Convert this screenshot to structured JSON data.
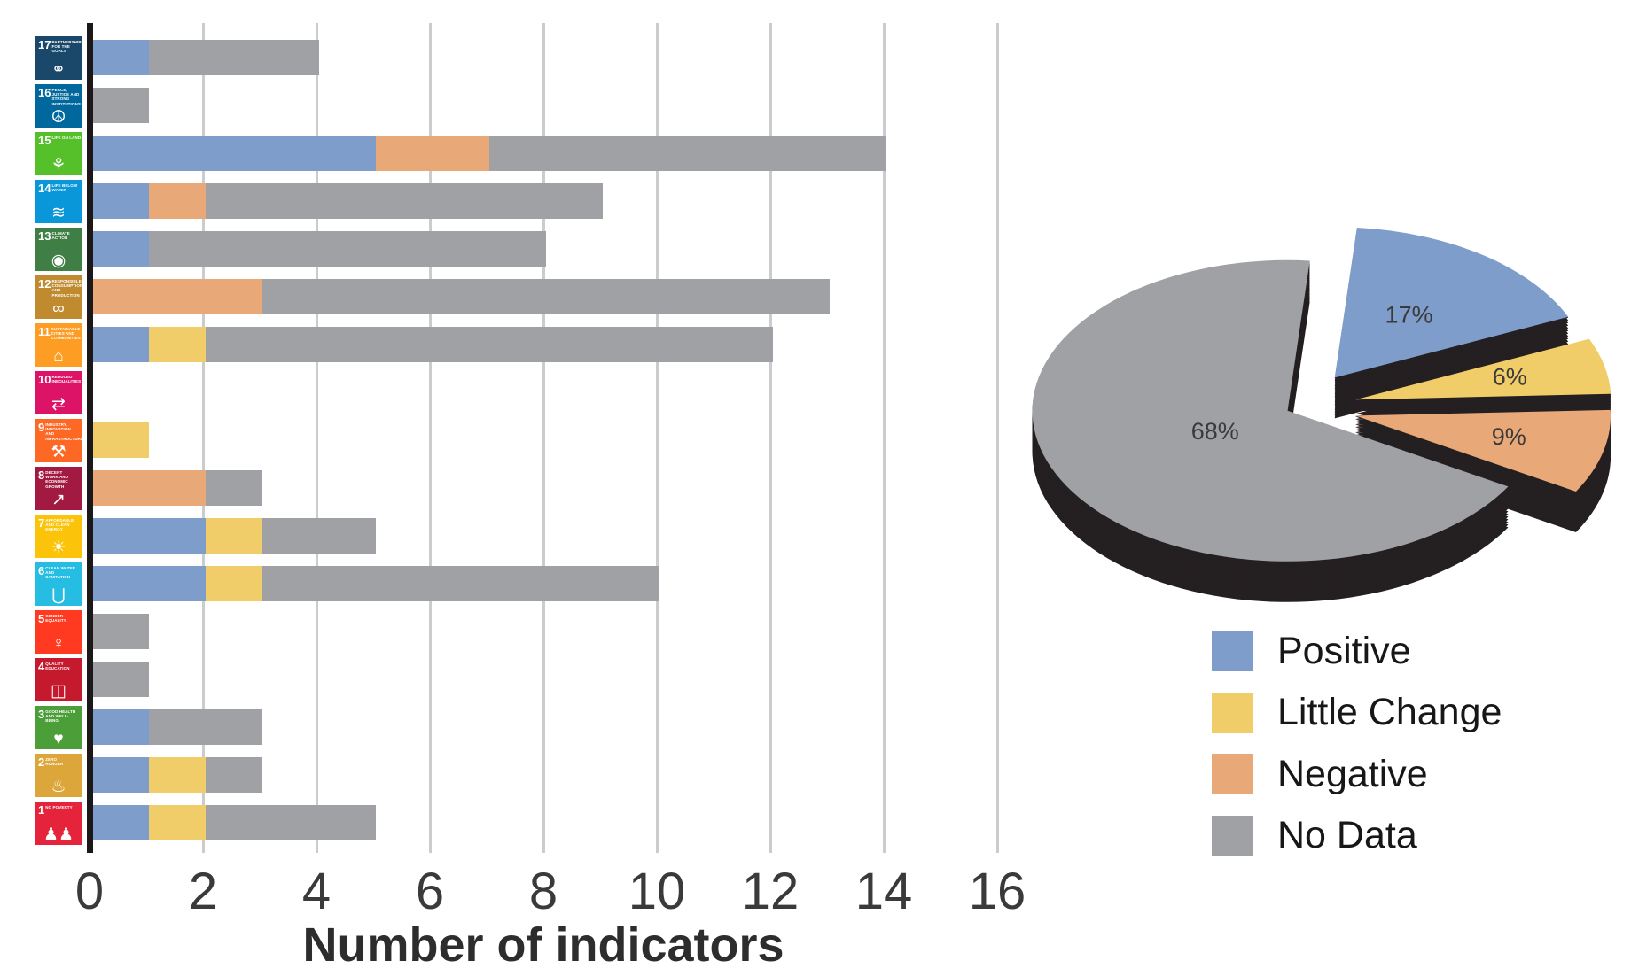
{
  "figure": {
    "background": "#ffffff",
    "xlabel": "Number of indicators"
  },
  "series": [
    {
      "key": "positive",
      "label": "Positive",
      "color": "#7F9DCB"
    },
    {
      "key": "little_change",
      "label": "Little Change",
      "color": "#F0CD68"
    },
    {
      "key": "negative",
      "label": "Negative",
      "color": "#E9A878"
    },
    {
      "key": "no_data",
      "label": "No Data",
      "color": "#A0A1A5"
    }
  ],
  "chart_data": [
    {
      "type": "bar",
      "orientation": "horizontal",
      "stacked": true,
      "xlabel": "Number of indicators",
      "xlim": [
        0,
        16
      ],
      "xticks": [
        0,
        2,
        4,
        6,
        8,
        10,
        12,
        14,
        16
      ],
      "grid": "vertical",
      "series_order": [
        "positive",
        "little_change",
        "negative",
        "no_data"
      ],
      "rows": [
        {
          "sdg": 17,
          "title": "PARTNERSHIPS FOR THE GOALS",
          "tile_color": "#19486A",
          "pictogram": "interlocked-rings-icon",
          "glyph": "⚭",
          "values": {
            "positive": 1,
            "little_change": 0,
            "negative": 0,
            "no_data": 3
          }
        },
        {
          "sdg": 16,
          "title": "PEACE, JUSTICE AND STRONG INSTITUTIONS",
          "tile_color": "#00689D",
          "pictogram": "dove-icon",
          "glyph": "☮",
          "values": {
            "positive": 0,
            "little_change": 0,
            "negative": 0,
            "no_data": 1
          }
        },
        {
          "sdg": 15,
          "title": "LIFE ON LAND",
          "tile_color": "#56C02B",
          "pictogram": "tree-icon",
          "glyph": "⚘",
          "values": {
            "positive": 5,
            "little_change": 0,
            "negative": 2,
            "no_data": 7
          }
        },
        {
          "sdg": 14,
          "title": "LIFE BELOW WATER",
          "tile_color": "#0A97D9",
          "pictogram": "fish-waves-icon",
          "glyph": "≋",
          "values": {
            "positive": 1,
            "little_change": 0,
            "negative": 1,
            "no_data": 7
          }
        },
        {
          "sdg": 13,
          "title": "CLIMATE ACTION",
          "tile_color": "#3F7E44",
          "pictogram": "eye-globe-icon",
          "glyph": "◉",
          "values": {
            "positive": 1,
            "little_change": 0,
            "negative": 0,
            "no_data": 7
          }
        },
        {
          "sdg": 12,
          "title": "RESPONSIBLE CONSUMPTION AND PRODUCTION",
          "tile_color": "#BF8B2E",
          "pictogram": "infinity-icon",
          "glyph": "∞",
          "values": {
            "positive": 0,
            "little_change": 0,
            "negative": 3,
            "no_data": 10
          }
        },
        {
          "sdg": 11,
          "title": "SUSTAINABLE CITIES AND COMMUNITIES",
          "tile_color": "#FD9D24",
          "pictogram": "buildings-icon",
          "glyph": "⌂",
          "values": {
            "positive": 1,
            "little_change": 1,
            "negative": 0,
            "no_data": 10
          }
        },
        {
          "sdg": 10,
          "title": "REDUCED INEQUALITIES",
          "tile_color": "#DD1367",
          "pictogram": "equality-arrows-icon",
          "glyph": "⇄",
          "values": {
            "positive": 0,
            "little_change": 0,
            "negative": 0,
            "no_data": 0
          }
        },
        {
          "sdg": 9,
          "title": "INDUSTRY, INNOVATION AND INFRASTRUCTURE",
          "tile_color": "#FD6925",
          "pictogram": "cubes-icon",
          "glyph": "⚒",
          "values": {
            "positive": 0,
            "little_change": 1,
            "negative": 0,
            "no_data": 0
          }
        },
        {
          "sdg": 8,
          "title": "DECENT WORK AND ECONOMIC GROWTH",
          "tile_color": "#A21942",
          "pictogram": "growth-chart-icon",
          "glyph": "↗",
          "values": {
            "positive": 0,
            "little_change": 0,
            "negative": 2,
            "no_data": 1
          }
        },
        {
          "sdg": 7,
          "title": "AFFORDABLE AND CLEAN ENERGY",
          "tile_color": "#FCC30B",
          "pictogram": "sun-icon",
          "glyph": "☀",
          "values": {
            "positive": 2,
            "little_change": 1,
            "negative": 0,
            "no_data": 2
          }
        },
        {
          "sdg": 6,
          "title": "CLEAN WATER AND SANITATION",
          "tile_color": "#26BDE2",
          "pictogram": "water-glass-icon",
          "glyph": "⋃",
          "values": {
            "positive": 2,
            "little_change": 1,
            "negative": 0,
            "no_data": 7
          }
        },
        {
          "sdg": 5,
          "title": "GENDER EQUALITY",
          "tile_color": "#FF3A21",
          "pictogram": "gender-icon",
          "glyph": "♀",
          "values": {
            "positive": 0,
            "little_change": 0,
            "negative": 0,
            "no_data": 1
          }
        },
        {
          "sdg": 4,
          "title": "QUALITY EDUCATION",
          "tile_color": "#C5192D",
          "pictogram": "book-icon",
          "glyph": "◫",
          "values": {
            "positive": 0,
            "little_change": 0,
            "negative": 0,
            "no_data": 1
          }
        },
        {
          "sdg": 3,
          "title": "GOOD HEALTH AND WELL-BEING",
          "tile_color": "#4C9F38",
          "pictogram": "heartbeat-icon",
          "glyph": "♥",
          "values": {
            "positive": 1,
            "little_change": 0,
            "negative": 0,
            "no_data": 2
          }
        },
        {
          "sdg": 2,
          "title": "ZERO HUNGER",
          "tile_color": "#DDA63A",
          "pictogram": "bowl-icon",
          "glyph": "♨",
          "values": {
            "positive": 1,
            "little_change": 1,
            "negative": 0,
            "no_data": 1
          }
        },
        {
          "sdg": 1,
          "title": "NO POVERTY",
          "tile_color": "#E5243B",
          "pictogram": "family-icon",
          "glyph": "♟♟",
          "values": {
            "positive": 1,
            "little_change": 1,
            "negative": 0,
            "no_data": 3
          }
        }
      ]
    },
    {
      "type": "pie",
      "style": "3d-exploded",
      "side_color": "#241F20",
      "label_format": "percent",
      "slices": [
        {
          "label": "Positive",
          "value_pct": 17,
          "shown_label": "17%"
        },
        {
          "label": "Little Change",
          "value_pct": 6,
          "shown_label": "6%"
        },
        {
          "label": "Negative",
          "value_pct": 9,
          "shown_label": "9%"
        },
        {
          "label": "No Data",
          "value_pct": 68,
          "shown_label": "68%"
        }
      ]
    }
  ],
  "legend": {
    "position": "bottom-right",
    "items": [
      "Positive",
      "Little Change",
      "Negative",
      "No Data"
    ]
  }
}
